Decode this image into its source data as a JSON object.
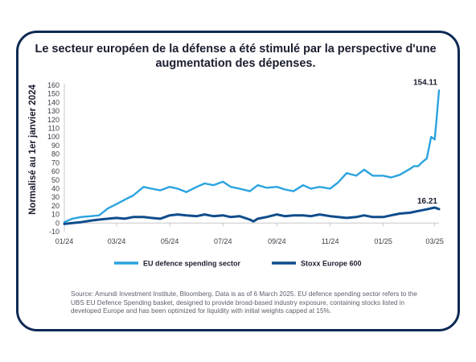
{
  "title": "Le secteur européen de la défense a été stimulé par la perspective d'une augmentation des dépenses.",
  "source_note": "Source: Amundi Investment Institute, Bloomberg. Data is as of 6 March 2025. EU defence spending sector refers to the UBS EU Defence Spending basket, designed to provide broad-based industry exposure, containing stocks listed in developed Europe and has been optimized for liquidity with initial weights capped at 15%.",
  "colors": {
    "border": "#0d2a54",
    "eu_defence": "#2aa3df",
    "stoxx": "#0f4c8c",
    "axis": "#c7c7c7",
    "text": "#1a1d2e"
  },
  "chart_data": {
    "type": "line",
    "ylabel": "Normalisé au 1er janvier 2024",
    "ylim": [
      -10,
      160
    ],
    "yticks": [
      160,
      150,
      140,
      130,
      120,
      110,
      100,
      90,
      80,
      70,
      60,
      50,
      40,
      30,
      20,
      10,
      0,
      -10
    ],
    "xlim": [
      "2024-01-01",
      "2025-03-06"
    ],
    "xticks": [
      {
        "date": "2024-01-01",
        "label": "01/24"
      },
      {
        "date": "2024-03-01",
        "label": "03/24"
      },
      {
        "date": "2024-05-01",
        "label": "05/24"
      },
      {
        "date": "2024-07-01",
        "label": "07/24"
      },
      {
        "date": "2024-09-01",
        "label": "09/24"
      },
      {
        "date": "2024-11-01",
        "label": "11/24"
      },
      {
        "date": "2025-01-01",
        "label": "01/25"
      },
      {
        "date": "2025-03-01",
        "label": "03/25"
      }
    ],
    "series": [
      {
        "name": "EU defence spending sector",
        "end_label": "154.11",
        "x": [
          "2024-01-01",
          "2024-01-10",
          "2024-01-20",
          "2024-02-01",
          "2024-02-10",
          "2024-02-20",
          "2024-03-01",
          "2024-03-10",
          "2024-03-20",
          "2024-04-01",
          "2024-04-10",
          "2024-04-20",
          "2024-05-01",
          "2024-05-10",
          "2024-05-20",
          "2024-06-01",
          "2024-06-10",
          "2024-06-20",
          "2024-07-01",
          "2024-07-10",
          "2024-07-20",
          "2024-08-01",
          "2024-08-10",
          "2024-08-20",
          "2024-09-01",
          "2024-09-10",
          "2024-09-20",
          "2024-10-01",
          "2024-10-10",
          "2024-10-20",
          "2024-11-01",
          "2024-11-10",
          "2024-11-20",
          "2024-12-01",
          "2024-12-10",
          "2024-12-20",
          "2025-01-01",
          "2025-01-10",
          "2025-01-20",
          "2025-02-01",
          "2025-02-05",
          "2025-02-10",
          "2025-02-15",
          "2025-02-20",
          "2025-02-25",
          "2025-03-01",
          "2025-03-03",
          "2025-03-06"
        ],
        "y": [
          1,
          5,
          7,
          8,
          9,
          17,
          22,
          27,
          32,
          42,
          40,
          38,
          42,
          40,
          36,
          42,
          46,
          44,
          48,
          42,
          40,
          37,
          44,
          41,
          42,
          39,
          37,
          44,
          40,
          42,
          40,
          47,
          58,
          55,
          62,
          55,
          55,
          53,
          56,
          63,
          66,
          66,
          71,
          75,
          100,
          97,
          118,
          154.11
        ]
      },
      {
        "name": "Stoxx Europe 600",
        "end_label": "16.21",
        "x": [
          "2024-01-01",
          "2024-01-10",
          "2024-01-20",
          "2024-02-01",
          "2024-02-10",
          "2024-02-20",
          "2024-03-01",
          "2024-03-10",
          "2024-03-20",
          "2024-04-01",
          "2024-04-10",
          "2024-04-20",
          "2024-05-01",
          "2024-05-10",
          "2024-05-20",
          "2024-06-01",
          "2024-06-10",
          "2024-06-20",
          "2024-07-01",
          "2024-07-10",
          "2024-07-20",
          "2024-08-01",
          "2024-08-05",
          "2024-08-10",
          "2024-08-20",
          "2024-09-01",
          "2024-09-10",
          "2024-09-20",
          "2024-10-01",
          "2024-10-10",
          "2024-10-20",
          "2024-11-01",
          "2024-11-10",
          "2024-11-20",
          "2024-12-01",
          "2024-12-10",
          "2024-12-20",
          "2025-01-01",
          "2025-01-10",
          "2025-01-20",
          "2025-02-01",
          "2025-02-10",
          "2025-02-20",
          "2025-03-01",
          "2025-03-06"
        ],
        "y": [
          -1,
          0,
          1,
          3,
          4,
          5,
          6,
          5,
          7,
          7,
          6,
          5,
          9,
          10,
          9,
          8,
          10,
          8,
          9,
          7,
          8,
          4,
          2,
          5,
          7,
          10,
          8,
          9,
          9,
          8,
          10,
          8,
          7,
          6,
          7,
          9,
          7,
          7,
          9,
          11,
          12,
          14,
          16,
          18,
          16.21
        ]
      }
    ]
  }
}
